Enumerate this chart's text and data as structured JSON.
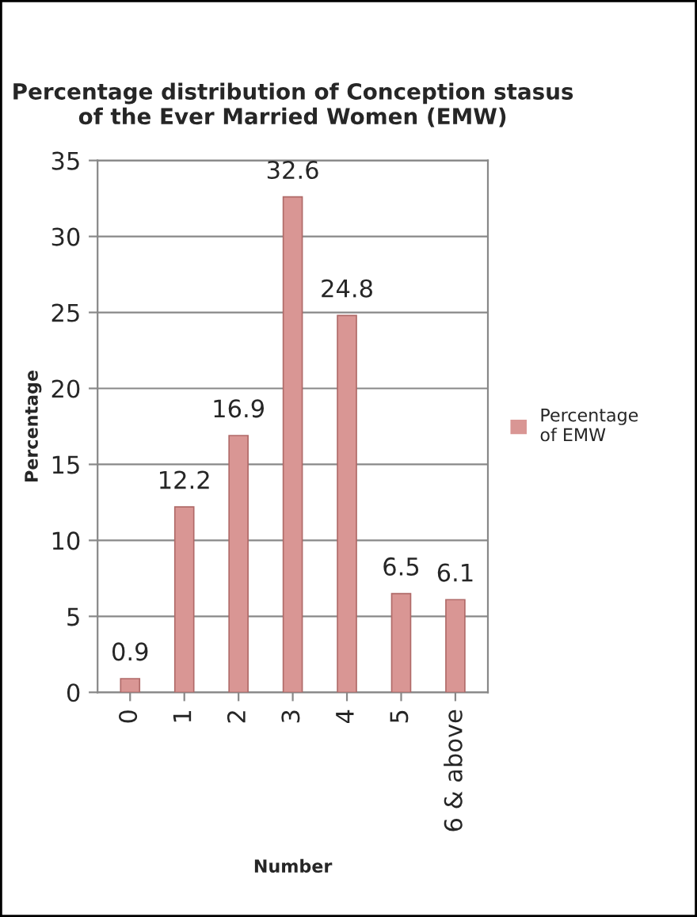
{
  "chart_data": {
    "type": "bar",
    "title": "Percentage distribution of Conception stasus of the Ever Married Women (EMW)",
    "xlabel": "Number",
    "ylabel": "Percentage",
    "categories": [
      "0",
      "1",
      "2",
      "3",
      "4",
      "5",
      "6 & above"
    ],
    "series": [
      {
        "name": "Percentage of EMW",
        "color": "#d99694",
        "values": [
          0.9,
          12.2,
          16.9,
          32.6,
          24.8,
          6.5,
          6.1
        ]
      }
    ],
    "ylim": [
      0,
      35
    ],
    "yticks": [
      0,
      5,
      10,
      15,
      20,
      25,
      30,
      35
    ],
    "grid": "y",
    "legend": "right",
    "data_labels": true
  }
}
